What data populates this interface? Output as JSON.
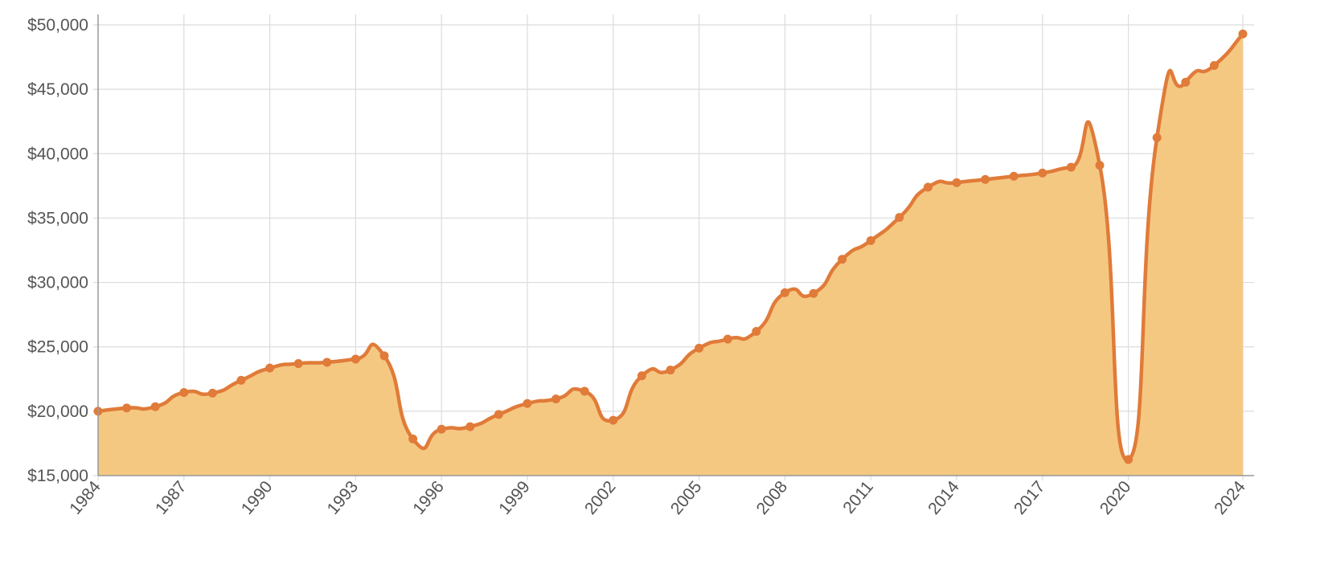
{
  "colors": {
    "line": "#e07b39",
    "area": "#f5c882",
    "grid": "#dcdcdc",
    "axis": "#9a9a9a",
    "tick_text": "#555555"
  },
  "chart_data": {
    "type": "area",
    "title": "",
    "xlabel": "",
    "ylabel": "",
    "ylim": [
      15000,
      50000
    ],
    "xlim": [
      1984,
      2024
    ],
    "grid": true,
    "legend": "none",
    "y_ticks": [
      15000,
      20000,
      25000,
      30000,
      35000,
      40000,
      45000,
      50000
    ],
    "y_tick_labels": [
      "$15,000",
      "$20,000",
      "$25,000",
      "$30,000",
      "$35,000",
      "$40,000",
      "$45,000",
      "$50,000"
    ],
    "x_ticks": [
      1984,
      1987,
      1990,
      1993,
      1996,
      1999,
      2002,
      2005,
      2008,
      2011,
      2014,
      2017,
      2020,
      2024
    ],
    "x_tick_labels": [
      "1984",
      "1987",
      "1990",
      "1993",
      "1996",
      "1999",
      "2002",
      "2005",
      "2008",
      "2011",
      "2014",
      "2017",
      "2020",
      "2024"
    ],
    "series": [
      {
        "x": [
          1984,
          1985,
          1986,
          1987,
          1988,
          1989,
          1990,
          1991,
          1992,
          1993,
          1994,
          1995,
          1996,
          1997,
          1998,
          1999,
          2000,
          2001,
          2002,
          2003,
          2004,
          2005,
          2006,
          2007,
          2008,
          2009,
          2010,
          2011,
          2012,
          2013,
          2014,
          2015,
          2016,
          2017,
          2018,
          2019,
          2020,
          2021,
          2022,
          2023,
          2024
        ],
        "y": [
          20000,
          20250,
          20350,
          21450,
          21400,
          22400,
          23350,
          23700,
          23800,
          24050,
          24300,
          17850,
          18600,
          18800,
          19750,
          20600,
          20950,
          21550,
          19300,
          22750,
          23200,
          24900,
          25600,
          26200,
          29200,
          29150,
          31800,
          33250,
          35050,
          37400,
          37750,
          38000,
          38250,
          38500,
          38950,
          39100,
          16250,
          41250,
          45550,
          46850,
          49300
        ]
      }
    ]
  }
}
